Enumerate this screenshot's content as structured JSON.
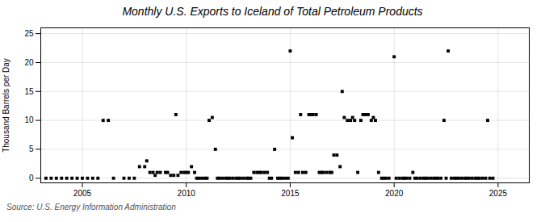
{
  "chart_data": {
    "type": "scatter",
    "title": "Monthly U.S. Exports to Iceland of Total Petroleum Products",
    "ylabel": "Thousand Barrels per Day",
    "source": "Source: U.S. Energy Information Administration",
    "marker": "square",
    "grid": true,
    "xlim": [
      2003.0,
      2026.5
    ],
    "ylim": [
      -0.8,
      26
    ],
    "xticks": [
      2005,
      2010,
      2015,
      2020,
      2025
    ],
    "yticks": [
      0,
      5,
      10,
      15,
      20,
      25
    ],
    "x": [
      2003.25,
      2003.5,
      2003.75,
      2004.0,
      2004.25,
      2004.5,
      2004.75,
      2005.0,
      2005.25,
      2005.5,
      2005.75,
      2006.0,
      2006.25,
      2006.5,
      2007.0,
      2007.25,
      2007.5,
      2007.75,
      2008.0,
      2008.1,
      2008.25,
      2008.4,
      2008.5,
      2008.6,
      2008.75,
      2009.0,
      2009.1,
      2009.25,
      2009.4,
      2009.5,
      2009.6,
      2009.75,
      2009.9,
      2010.0,
      2010.1,
      2010.25,
      2010.4,
      2010.5,
      2010.6,
      2010.75,
      2010.9,
      2011.0,
      2011.1,
      2011.25,
      2011.4,
      2011.5,
      2011.6,
      2011.75,
      2011.9,
      2012.0,
      2012.1,
      2012.25,
      2012.4,
      2012.5,
      2012.6,
      2012.75,
      2012.9,
      2013.0,
      2013.1,
      2013.25,
      2013.4,
      2013.5,
      2013.6,
      2013.75,
      2013.9,
      2014.0,
      2014.1,
      2014.25,
      2014.4,
      2014.5,
      2014.6,
      2014.75,
      2014.9,
      2015.0,
      2015.1,
      2015.25,
      2015.4,
      2015.5,
      2015.6,
      2015.75,
      2015.9,
      2016.0,
      2016.1,
      2016.25,
      2016.4,
      2016.5,
      2016.6,
      2016.75,
      2016.9,
      2017.0,
      2017.1,
      2017.25,
      2017.4,
      2017.5,
      2017.6,
      2017.75,
      2017.9,
      2018.0,
      2018.1,
      2018.25,
      2018.4,
      2018.5,
      2018.6,
      2018.75,
      2018.9,
      2019.0,
      2019.1,
      2019.25,
      2019.4,
      2019.5,
      2019.6,
      2019.75,
      2020.0,
      2020.1,
      2020.25,
      2020.4,
      2020.5,
      2020.6,
      2020.75,
      2020.9,
      2021.0,
      2021.1,
      2021.25,
      2021.4,
      2021.5,
      2021.6,
      2021.75,
      2021.9,
      2022.0,
      2022.1,
      2022.25,
      2022.4,
      2022.5,
      2022.6,
      2022.75,
      2022.9,
      2023.0,
      2023.1,
      2023.25,
      2023.4,
      2023.5,
      2023.6,
      2023.75,
      2023.9,
      2024.0,
      2024.1,
      2024.25,
      2024.4,
      2024.5,
      2024.6,
      2024.75
    ],
    "values": [
      0,
      0,
      0,
      0,
      0,
      0,
      0,
      0,
      0,
      0,
      0,
      10,
      10,
      0,
      0,
      0,
      0,
      2,
      2,
      3,
      1,
      1,
      0.5,
      1,
      1,
      1,
      1,
      0.5,
      0.5,
      11,
      0.5,
      1,
      1,
      1,
      1,
      2,
      1,
      0,
      0,
      0,
      0,
      0,
      10,
      10.5,
      5,
      0,
      0,
      0,
      0,
      0,
      0,
      0,
      0,
      0,
      0,
      0,
      0,
      0,
      0,
      1,
      1,
      1,
      1,
      1,
      1,
      0,
      0,
      5,
      0,
      0,
      0,
      0,
      0,
      22,
      7,
      1,
      1,
      11,
      1,
      1,
      11,
      11,
      11,
      11,
      1,
      1,
      1,
      1,
      1,
      1,
      4,
      4,
      2,
      15,
      10.5,
      10,
      10,
      10.5,
      10,
      1,
      10,
      11,
      11,
      11,
      10,
      10.5,
      10,
      1,
      0,
      0,
      0,
      0,
      21,
      0,
      0,
      0,
      0,
      0,
      0,
      1,
      0,
      0,
      0,
      0,
      0,
      0,
      0,
      0,
      0,
      0,
      0,
      10,
      0,
      22,
      0,
      0,
      0,
      0,
      0,
      0,
      0,
      0,
      0,
      0,
      0,
      0,
      0,
      0,
      10,
      0,
      0
    ]
  }
}
